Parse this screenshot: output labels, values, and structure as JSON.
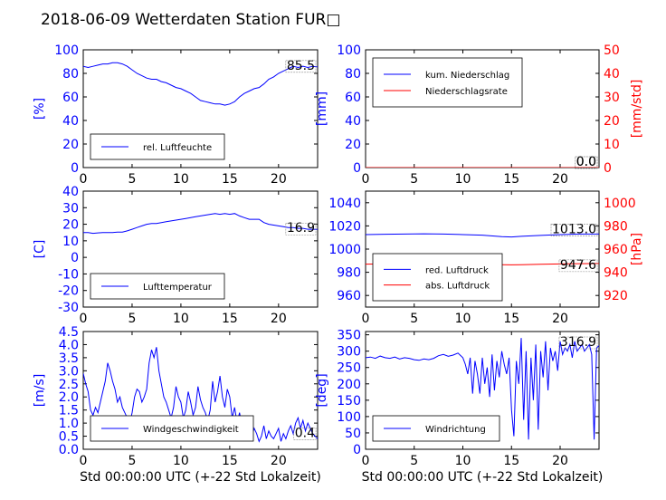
{
  "title": "2018-06-09 Wetterdaten Station FUR□",
  "colors": {
    "blue": "#0000ff",
    "red": "#ff0000",
    "black": "#000000"
  },
  "chart_data": [
    {
      "id": "humidity",
      "type": "line",
      "xlim": [
        0,
        24
      ],
      "xticks": [
        0,
        5,
        10,
        15,
        20
      ],
      "ylim": [
        0,
        100
      ],
      "yticks": [
        0,
        20,
        40,
        60,
        80,
        100
      ],
      "ylabel": "[%]",
      "ylabel_color": "#0000ff",
      "series": [
        {
          "name": "rel. Luftfeuchte",
          "color": "#0000ff",
          "x": [
            0,
            0.5,
            1,
            1.5,
            2,
            2.5,
            3,
            3.5,
            4,
            4.5,
            5,
            5.5,
            6,
            6.5,
            7,
            7.5,
            8,
            8.5,
            9,
            9.5,
            10,
            10.5,
            11,
            11.5,
            12,
            12.5,
            13,
            13.5,
            14,
            14.5,
            15,
            15.5,
            16,
            16.5,
            17,
            17.5,
            18,
            18.5,
            19,
            19.5,
            20,
            20.5,
            21,
            21.5,
            22,
            22.5,
            23,
            23.5,
            24
          ],
          "y": [
            86,
            85,
            86,
            87,
            88,
            88,
            89,
            89,
            88,
            86,
            83,
            80,
            78,
            76,
            75,
            75,
            73,
            72,
            70,
            68,
            67,
            65,
            63,
            60,
            57,
            56,
            55,
            54,
            54,
            53,
            54,
            56,
            60,
            63,
            65,
            67,
            68,
            71,
            75,
            77,
            80,
            82,
            84,
            86,
            85,
            86,
            85,
            86,
            85.5
          ]
        }
      ],
      "legend": {
        "position": "lower-left",
        "entries": [
          "rel. Luftfeuchte"
        ]
      },
      "annotation": "85.5"
    },
    {
      "id": "precipitation",
      "type": "line",
      "xlim": [
        0,
        24
      ],
      "xticks": [
        0,
        5,
        10,
        15,
        20
      ],
      "ylim": [
        0,
        100
      ],
      "yticks": [
        0,
        20,
        40,
        60,
        80,
        100
      ],
      "ylabel": "[mm]",
      "ylabel_color": "#0000ff",
      "y2lim": [
        0,
        50
      ],
      "y2ticks": [
        0,
        10,
        20,
        30,
        40,
        50
      ],
      "y2label": "[mm/std]",
      "y2label_color": "#ff0000",
      "series": [
        {
          "name": "kum. Niederschlag",
          "color": "#0000ff",
          "axis": "left",
          "x": [
            0,
            24
          ],
          "y": [
            0,
            0
          ]
        },
        {
          "name": "Niederschlagsrate",
          "color": "#ff0000",
          "axis": "right",
          "x": [
            0,
            24
          ],
          "y": [
            0,
            0
          ]
        }
      ],
      "legend": {
        "position": "upper-left",
        "entries": [
          "kum. Niederschlag",
          "Niederschlagsrate"
        ]
      },
      "annotation": "0.0",
      "annotation2": "0.0"
    },
    {
      "id": "temperature",
      "type": "line",
      "xlim": [
        0,
        24
      ],
      "xticks": [
        0,
        5,
        10,
        15,
        20
      ],
      "ylim": [
        -30,
        40
      ],
      "yticks": [
        -30,
        -20,
        -10,
        0,
        10,
        20,
        30,
        40
      ],
      "ylabel": "[C]",
      "ylabel_color": "#0000ff",
      "series": [
        {
          "name": "Lufttemperatur",
          "color": "#0000ff",
          "x": [
            0,
            0.5,
            1,
            1.5,
            2,
            2.5,
            3,
            3.5,
            4,
            4.5,
            5,
            5.5,
            6,
            6.5,
            7,
            7.5,
            8,
            8.5,
            9,
            9.5,
            10,
            10.5,
            11,
            11.5,
            12,
            12.5,
            13,
            13.5,
            14,
            14.5,
            15,
            15.5,
            16,
            16.5,
            17,
            17.5,
            18,
            18.5,
            19,
            19.5,
            20,
            20.5,
            21,
            21.5,
            22,
            22.5,
            23,
            23.5,
            24
          ],
          "y": [
            15,
            15,
            14.5,
            14.8,
            15,
            15,
            15,
            15.2,
            15.3,
            16,
            17,
            18,
            19,
            20,
            20.5,
            20.5,
            21,
            21.5,
            22,
            22.5,
            23,
            23.5,
            24,
            24.5,
            25,
            25.5,
            26,
            26.5,
            26,
            26.5,
            26,
            26.5,
            25,
            24,
            23,
            23,
            23,
            21,
            20,
            19.5,
            19,
            18.5,
            18,
            18,
            17.5,
            17.5,
            17,
            17,
            16.9
          ]
        }
      ],
      "legend": {
        "position": "lower-left",
        "entries": [
          "Lufttemperatur"
        ]
      },
      "annotation": "16.9"
    },
    {
      "id": "pressure",
      "type": "line",
      "xlim": [
        0,
        24
      ],
      "xticks": [
        0,
        5,
        10,
        15,
        20
      ],
      "ylim": [
        950,
        1050
      ],
      "yticks": [
        960,
        980,
        1000,
        1020,
        1040
      ],
      "ylabel": "",
      "y2lim": [
        910,
        1010
      ],
      "y2ticks": [
        920,
        940,
        960,
        980,
        1000
      ],
      "y2label": "[hPa]",
      "y2label_color": "#ff0000",
      "series": [
        {
          "name": "red. Luftdruck",
          "color": "#0000ff",
          "axis": "left",
          "x": [
            0,
            2,
            4,
            6,
            8,
            10,
            12,
            14,
            15,
            16,
            18,
            20,
            22,
            24
          ],
          "y": [
            1012.5,
            1012.8,
            1013,
            1013.2,
            1013,
            1012.5,
            1012,
            1010.8,
            1010.5,
            1011,
            1011.8,
            1012.5,
            1013,
            1013.0
          ]
        },
        {
          "name": "abs. Luftdruck",
          "color": "#ff0000",
          "axis": "right",
          "x": [
            0,
            2,
            4,
            6,
            8,
            10,
            12,
            14,
            15,
            16,
            18,
            20,
            22,
            24
          ],
          "y": [
            947,
            947.2,
            947.4,
            947.6,
            947.5,
            947.2,
            946.9,
            946.5,
            946.4,
            946.6,
            946.9,
            947.2,
            947.4,
            947.6
          ]
        }
      ],
      "legend": {
        "position": "lower-left",
        "entries": [
          "red. Luftdruck",
          "abs. Luftdruck"
        ]
      },
      "annotation": "1013.0",
      "annotation2": "947.6"
    },
    {
      "id": "windspeed",
      "type": "line",
      "xlim": [
        0,
        24
      ],
      "xticks": [
        0,
        5,
        10,
        15,
        20
      ],
      "ylim": [
        0,
        4.5
      ],
      "yticks": [
        0.0,
        0.5,
        1.0,
        1.5,
        2.0,
        2.5,
        3.0,
        3.5,
        4.0,
        4.5
      ],
      "ylabel": "[m/s]",
      "ylabel_color": "#0000ff",
      "xlabel": "Std 00:00:00 UTC (+-22 Std Lokalzeit)",
      "series": [
        {
          "name": "Windgeschwindigkeit",
          "color": "#0000ff",
          "x": [
            0,
            0.25,
            0.5,
            0.75,
            1,
            1.25,
            1.5,
            1.75,
            2,
            2.25,
            2.5,
            2.75,
            3,
            3.25,
            3.5,
            3.75,
            4,
            4.25,
            4.5,
            4.75,
            5,
            5.25,
            5.5,
            5.75,
            6,
            6.25,
            6.5,
            6.75,
            7,
            7.25,
            7.5,
            7.75,
            8,
            8.25,
            8.5,
            8.75,
            9,
            9.25,
            9.5,
            9.75,
            10,
            10.25,
            10.5,
            10.75,
            11,
            11.25,
            11.5,
            11.75,
            12,
            12.25,
            12.5,
            12.75,
            13,
            13.25,
            13.5,
            13.75,
            14,
            14.25,
            14.5,
            14.75,
            15,
            15.25,
            15.5,
            15.75,
            16,
            16.25,
            16.5,
            16.75,
            17,
            17.25,
            17.5,
            17.75,
            18,
            18.25,
            18.5,
            18.75,
            19,
            19.25,
            19.5,
            19.75,
            20,
            20.25,
            20.5,
            20.75,
            21,
            21.25,
            21.5,
            21.75,
            22,
            22.25,
            22.5,
            22.75,
            23,
            23.25,
            23.5,
            23.75,
            24
          ],
          "y": [
            2.9,
            2.5,
            2.2,
            1.5,
            1.3,
            1.6,
            1.4,
            1.8,
            2.2,
            2.6,
            3.3,
            3.0,
            2.6,
            2.3,
            1.8,
            2.0,
            1.6,
            1.4,
            1.2,
            1.0,
            1.4,
            2.0,
            2.3,
            2.2,
            1.8,
            2.0,
            2.3,
            3.3,
            3.8,
            3.5,
            3.9,
            3.0,
            2.5,
            2.0,
            1.8,
            1.5,
            1.2,
            1.6,
            2.4,
            2.0,
            1.8,
            1.2,
            1.5,
            2.2,
            1.8,
            1.3,
            1.6,
            2.4,
            1.9,
            1.6,
            1.4,
            1.1,
            1.5,
            2.6,
            1.8,
            2.2,
            2.8,
            2.0,
            1.6,
            2.3,
            2.0,
            1.2,
            1.6,
            1.0,
            1.4,
            0.9,
            1.2,
            0.7,
            1.0,
            0.5,
            0.8,
            0.6,
            0.3,
            0.5,
            0.9,
            0.4,
            0.7,
            0.5,
            0.4,
            0.6,
            0.8,
            0.3,
            0.6,
            0.4,
            0.7,
            0.9,
            0.6,
            1.0,
            1.2,
            0.8,
            1.1,
            0.7,
            1.0,
            0.8,
            0.6,
            0.5,
            0.4
          ]
        }
      ],
      "legend": {
        "position": "lower-center",
        "entries": [
          "Windgeschwindigkeit"
        ]
      },
      "annotation": "0.4"
    },
    {
      "id": "winddir",
      "type": "line",
      "xlim": [
        0,
        24
      ],
      "xticks": [
        0,
        5,
        10,
        15,
        20
      ],
      "ylim": [
        0,
        360
      ],
      "yticks": [
        0,
        50,
        100,
        150,
        200,
        250,
        300,
        350
      ],
      "ylabel": "[deg]",
      "ylabel_color": "#0000ff",
      "xlabel": "Std 00:00:00 UTC (+-22 Std Lokalzeit)",
      "series": [
        {
          "name": "Windrichtung",
          "color": "#0000ff",
          "x": [
            0,
            0.5,
            1,
            1.5,
            2,
            2.5,
            3,
            3.5,
            4,
            4.5,
            5,
            5.5,
            6,
            6.5,
            7,
            7.5,
            8,
            8.5,
            9,
            9.5,
            10,
            10.25,
            10.5,
            10.75,
            11,
            11.25,
            11.5,
            11.75,
            12,
            12.25,
            12.5,
            12.75,
            13,
            13.25,
            13.5,
            13.75,
            14,
            14.25,
            14.5,
            14.75,
            15,
            15.25,
            15.5,
            15.75,
            16,
            16.25,
            16.5,
            16.75,
            17,
            17.25,
            17.5,
            17.75,
            18,
            18.25,
            18.5,
            18.75,
            19,
            19.25,
            19.5,
            19.75,
            20,
            20.25,
            20.5,
            20.75,
            21,
            21.25,
            21.5,
            21.75,
            22,
            22.25,
            22.5,
            22.75,
            23,
            23.25,
            23.5,
            23.75,
            24
          ],
          "y": [
            280,
            282,
            278,
            285,
            280,
            278,
            282,
            276,
            280,
            278,
            274,
            272,
            276,
            274,
            278,
            286,
            290,
            284,
            288,
            294,
            280,
            260,
            230,
            280,
            170,
            270,
            230,
            170,
            280,
            200,
            250,
            160,
            290,
            180,
            270,
            220,
            300,
            260,
            230,
            280,
            120,
            40,
            270,
            200,
            340,
            90,
            300,
            30,
            280,
            150,
            320,
            60,
            300,
            220,
            330,
            180,
            310,
            270,
            300,
            240,
            330,
            290,
            310,
            300,
            320,
            280,
            330,
            300,
            310,
            320,
            300,
            310,
            320,
            290,
            30,
            310,
            316.9
          ]
        }
      ],
      "legend": {
        "position": "lower-left",
        "entries": [
          "Windrichtung"
        ]
      },
      "annotation": "316.9"
    }
  ]
}
